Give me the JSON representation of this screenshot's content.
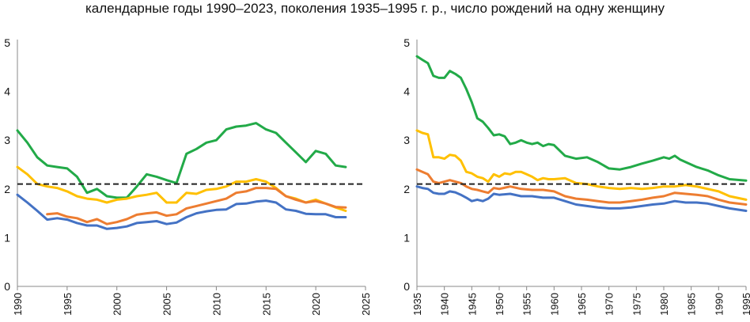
{
  "title": "календарные годы 1990–2023, поколения 1935–1995 г. р., число рождений на одну женщину",
  "colors": {
    "blue": "#4472C4",
    "orange": "#ED7D31",
    "yellow": "#FFC000",
    "green": "#22AA48",
    "reference": "#222222",
    "axis": "#888888"
  },
  "chart_data": [
    {
      "type": "line",
      "xlim": [
        1990,
        2025
      ],
      "ylim": [
        0,
        5
      ],
      "xticks": [
        "1990",
        "1995",
        "2000",
        "2005",
        "2010",
        "2015",
        "2020",
        "2025"
      ],
      "yticks": [
        "0",
        "1",
        "2",
        "3",
        "4",
        "5"
      ],
      "reference_line": 2.1,
      "series": [
        {
          "name": "green",
          "color": "green",
          "x": [
            1990,
            1991,
            1992,
            1993,
            1994,
            1995,
            1996,
            1997,
            1998,
            1999,
            2000,
            2001,
            2002,
            2003,
            2004,
            2005,
            2006,
            2007,
            2008,
            2009,
            2010,
            2011,
            2012,
            2013,
            2014,
            2015,
            2016,
            2017,
            2018,
            2019,
            2020,
            2021,
            2022,
            2023
          ],
          "y": [
            3.2,
            2.95,
            2.65,
            2.48,
            2.45,
            2.42,
            2.25,
            1.92,
            2.0,
            1.85,
            1.82,
            1.82,
            2.05,
            2.3,
            2.25,
            2.18,
            2.12,
            2.72,
            2.82,
            2.95,
            3.0,
            3.22,
            3.28,
            3.3,
            3.35,
            3.22,
            3.15,
            2.95,
            2.75,
            2.55,
            2.78,
            2.72,
            2.48,
            2.45
          ]
        },
        {
          "name": "yellow",
          "color": "yellow",
          "x": [
            1990,
            1991,
            1992,
            1993,
            1994,
            1995,
            1996,
            1997,
            1998,
            1999,
            2000,
            2001,
            2002,
            2003,
            2004,
            2005,
            2006,
            2007,
            2008,
            2009,
            2010,
            2011,
            2012,
            2013,
            2014,
            2015,
            2016,
            2017,
            2018,
            2019,
            2020,
            2021,
            2022,
            2023
          ],
          "y": [
            2.45,
            2.3,
            2.1,
            2.05,
            2.02,
            1.95,
            1.85,
            1.8,
            1.78,
            1.72,
            1.78,
            1.8,
            1.85,
            1.88,
            1.92,
            1.72,
            1.72,
            1.92,
            1.9,
            1.98,
            2.0,
            2.05,
            2.15,
            2.15,
            2.2,
            2.15,
            2.02,
            1.85,
            1.8,
            1.72,
            1.78,
            1.7,
            1.62,
            1.55
          ]
        },
        {
          "name": "orange",
          "color": "orange",
          "x": [
            1993,
            1994,
            1995,
            1996,
            1997,
            1998,
            1999,
            2000,
            2001,
            2002,
            2003,
            2004,
            2005,
            2006,
            2007,
            2008,
            2009,
            2010,
            2011,
            2012,
            2013,
            2014,
            2015,
            2016,
            2017,
            2018,
            2019,
            2020,
            2021,
            2022,
            2023
          ],
          "y": [
            1.48,
            1.5,
            1.43,
            1.4,
            1.32,
            1.38,
            1.28,
            1.32,
            1.38,
            1.47,
            1.5,
            1.52,
            1.45,
            1.48,
            1.6,
            1.65,
            1.7,
            1.75,
            1.8,
            1.92,
            1.95,
            2.02,
            2.02,
            2.0,
            1.85,
            1.78,
            1.72,
            1.75,
            1.7,
            1.63,
            1.62
          ]
        },
        {
          "name": "blue",
          "color": "blue",
          "x": [
            1990,
            1991,
            1992,
            1993,
            1994,
            1995,
            1996,
            1997,
            1998,
            1999,
            2000,
            2001,
            2002,
            2003,
            2004,
            2005,
            2006,
            2007,
            2008,
            2009,
            2010,
            2011,
            2012,
            2013,
            2014,
            2015,
            2016,
            2017,
            2018,
            2019,
            2020,
            2021,
            2022,
            2023
          ],
          "y": [
            1.88,
            1.72,
            1.55,
            1.37,
            1.4,
            1.37,
            1.3,
            1.25,
            1.25,
            1.18,
            1.2,
            1.23,
            1.3,
            1.32,
            1.34,
            1.28,
            1.31,
            1.42,
            1.5,
            1.54,
            1.57,
            1.58,
            1.69,
            1.7,
            1.74,
            1.76,
            1.72,
            1.58,
            1.55,
            1.49,
            1.48,
            1.48,
            1.42,
            1.42
          ]
        }
      ]
    },
    {
      "type": "line",
      "xlim": [
        1935,
        1995
      ],
      "ylim": [
        0,
        5
      ],
      "xticks": [
        "1935",
        "1940",
        "1945",
        "1950",
        "1955",
        "1960",
        "1965",
        "1970",
        "1975",
        "1980",
        "1985",
        "1990",
        "1995"
      ],
      "yticks": [
        "0",
        "1",
        "2",
        "3",
        "4",
        "5"
      ],
      "reference_line": 2.1,
      "series": [
        {
          "name": "green",
          "color": "green",
          "x": [
            1935,
            1936,
            1937,
            1938,
            1939,
            1940,
            1941,
            1942,
            1943,
            1944,
            1945,
            1946,
            1947,
            1948,
            1949,
            1950,
            1951,
            1952,
            1953,
            1954,
            1955,
            1956,
            1957,
            1958,
            1959,
            1960,
            1962,
            1964,
            1966,
            1968,
            1970,
            1972,
            1974,
            1976,
            1978,
            1980,
            1981,
            1982,
            1983,
            1984,
            1986,
            1988,
            1990,
            1992,
            1995
          ],
          "y": [
            4.72,
            4.65,
            4.58,
            4.32,
            4.28,
            4.28,
            4.42,
            4.36,
            4.28,
            4.05,
            3.78,
            3.45,
            3.38,
            3.25,
            3.1,
            3.12,
            3.08,
            2.92,
            2.95,
            3.0,
            2.95,
            2.92,
            2.95,
            2.88,
            2.92,
            2.9,
            2.68,
            2.62,
            2.65,
            2.55,
            2.42,
            2.4,
            2.45,
            2.52,
            2.58,
            2.65,
            2.62,
            2.68,
            2.6,
            2.55,
            2.45,
            2.38,
            2.28,
            2.2,
            2.17
          ]
        },
        {
          "name": "yellow",
          "color": "yellow",
          "x": [
            1935,
            1936,
            1937,
            1938,
            1939,
            1940,
            1941,
            1942,
            1943,
            1944,
            1945,
            1946,
            1947,
            1948,
            1949,
            1950,
            1951,
            1952,
            1953,
            1954,
            1955,
            1956,
            1957,
            1958,
            1959,
            1960,
            1962,
            1964,
            1966,
            1968,
            1970,
            1972,
            1974,
            1976,
            1978,
            1980,
            1982,
            1984,
            1986,
            1988,
            1990,
            1992,
            1995
          ],
          "y": [
            3.2,
            3.15,
            3.12,
            2.65,
            2.65,
            2.62,
            2.7,
            2.68,
            2.58,
            2.35,
            2.32,
            2.25,
            2.22,
            2.15,
            2.3,
            2.25,
            2.32,
            2.3,
            2.35,
            2.35,
            2.3,
            2.25,
            2.18,
            2.22,
            2.2,
            2.2,
            2.22,
            2.12,
            2.1,
            2.05,
            2.02,
            2.0,
            2.02,
            2.0,
            2.02,
            2.05,
            2.05,
            2.08,
            2.05,
            2.0,
            1.95,
            1.85,
            1.78
          ]
        },
        {
          "name": "orange",
          "color": "orange",
          "x": [
            1935,
            1936,
            1937,
            1938,
            1939,
            1940,
            1941,
            1942,
            1943,
            1944,
            1945,
            1946,
            1947,
            1948,
            1949,
            1950,
            1952,
            1954,
            1956,
            1958,
            1960,
            1962,
            1964,
            1966,
            1968,
            1970,
            1972,
            1974,
            1976,
            1978,
            1980,
            1982,
            1984,
            1986,
            1988,
            1990,
            1992,
            1995
          ],
          "y": [
            2.4,
            2.35,
            2.3,
            2.15,
            2.12,
            2.15,
            2.18,
            2.15,
            2.12,
            2.05,
            2.0,
            1.98,
            1.95,
            1.92,
            2.02,
            2.0,
            2.05,
            2.0,
            1.98,
            1.98,
            1.95,
            1.85,
            1.8,
            1.78,
            1.75,
            1.72,
            1.72,
            1.75,
            1.78,
            1.82,
            1.85,
            1.92,
            1.9,
            1.88,
            1.85,
            1.78,
            1.72,
            1.68
          ]
        },
        {
          "name": "blue",
          "color": "blue",
          "x": [
            1935,
            1936,
            1937,
            1938,
            1939,
            1940,
            1941,
            1942,
            1943,
            1944,
            1945,
            1946,
            1947,
            1948,
            1949,
            1950,
            1952,
            1954,
            1956,
            1958,
            1960,
            1962,
            1964,
            1966,
            1968,
            1970,
            1972,
            1974,
            1976,
            1978,
            1980,
            1982,
            1984,
            1986,
            1988,
            1990,
            1992,
            1995
          ],
          "y": [
            2.05,
            2.02,
            2.0,
            1.92,
            1.9,
            1.9,
            1.95,
            1.93,
            1.88,
            1.82,
            1.75,
            1.78,
            1.75,
            1.8,
            1.9,
            1.88,
            1.9,
            1.85,
            1.85,
            1.82,
            1.82,
            1.75,
            1.68,
            1.65,
            1.62,
            1.6,
            1.6,
            1.62,
            1.65,
            1.68,
            1.7,
            1.75,
            1.72,
            1.72,
            1.7,
            1.65,
            1.6,
            1.55
          ]
        }
      ]
    }
  ]
}
